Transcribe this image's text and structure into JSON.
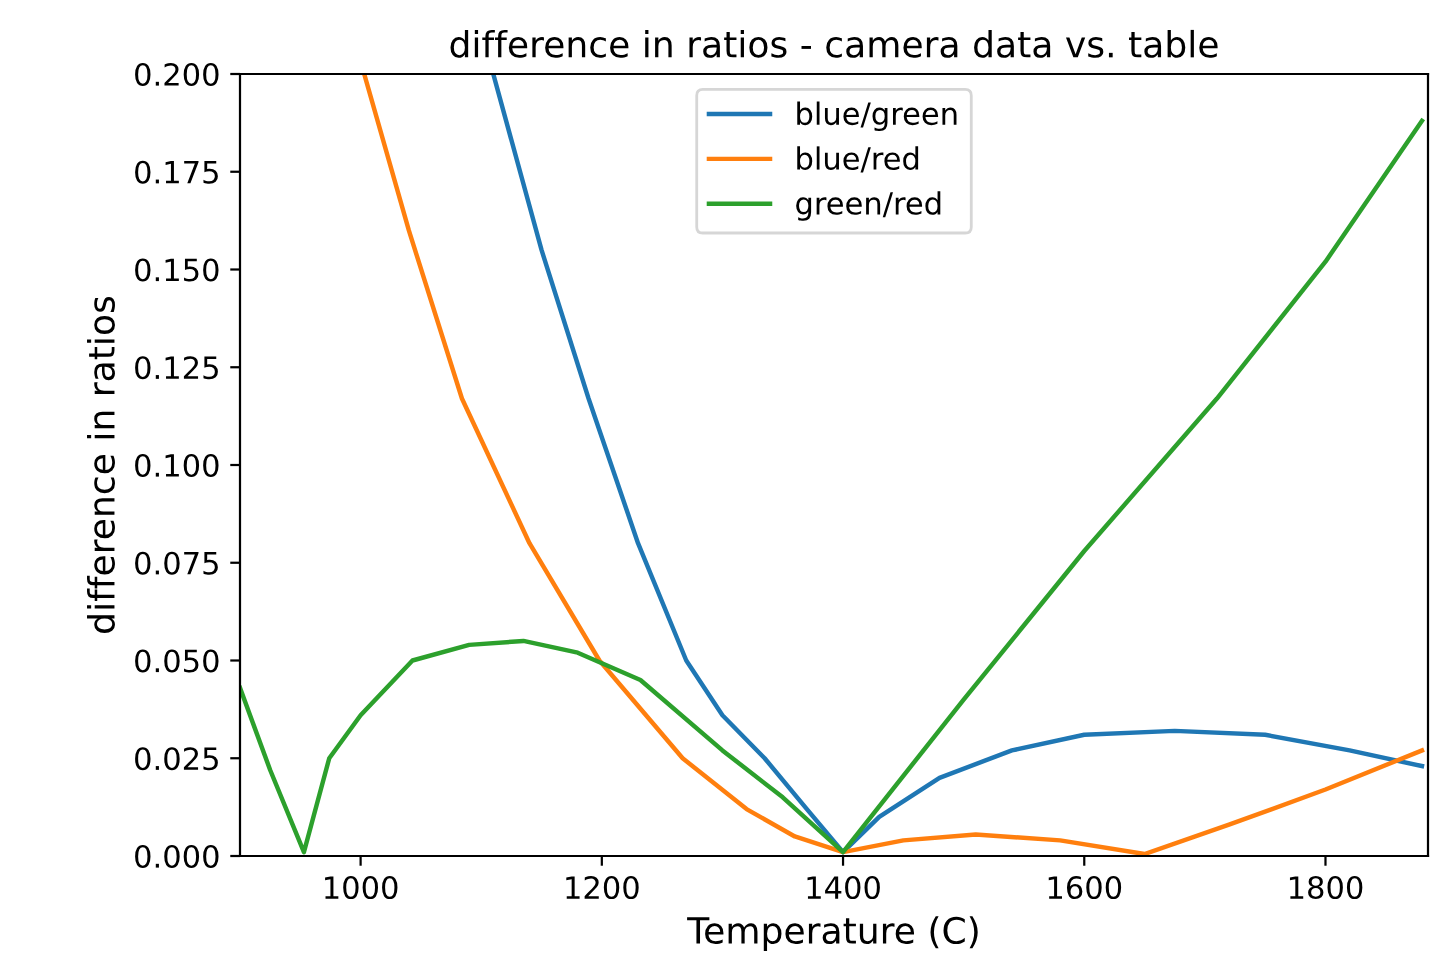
{
  "chart_data": {
    "type": "line",
    "title": "difference in ratios - camera data vs. table",
    "xlabel": "Temperature (C)",
    "ylabel": "difference in ratios",
    "xlim": [
      900,
      1885
    ],
    "ylim": [
      0,
      0.2
    ],
    "xticks": [
      1000,
      1200,
      1400,
      1600,
      1800
    ],
    "yticks": [
      {
        "value": 0,
        "label": "0.000"
      },
      {
        "value": 0.025,
        "label": "0.025"
      },
      {
        "value": 0.05,
        "label": "0.050"
      },
      {
        "value": 0.075,
        "label": "0.075"
      },
      {
        "value": 0.1,
        "label": "0.100"
      },
      {
        "value": 0.125,
        "label": "0.125"
      },
      {
        "value": 0.15,
        "label": "0.150"
      },
      {
        "value": 0.175,
        "label": "0.175"
      },
      {
        "value": 0.2,
        "label": "0.200"
      }
    ],
    "grid": false,
    "legend": "top center",
    "marker": "none",
    "line_style": "solid",
    "series": [
      {
        "name": "blue/green",
        "color": "#1f77b4",
        "x": [
          1110,
          1150,
          1189,
          1230,
          1270,
          1300,
          1335,
          1370,
          1400,
          1430,
          1480,
          1540,
          1600,
          1675,
          1750,
          1820,
          1880
        ],
        "values": [
          0.2,
          0.155,
          0.117,
          0.08,
          0.05,
          0.036,
          0.025,
          0.012,
          0.001,
          0.01,
          0.02,
          0.027,
          0.031,
          0.032,
          0.031,
          0.027,
          0.023
        ]
      },
      {
        "name": "blue/red",
        "color": "#ff7f0e",
        "x": [
          1003,
          1040,
          1084,
          1140,
          1198,
          1267,
          1320,
          1360,
          1400,
          1450,
          1510,
          1580,
          1650,
          1720,
          1800,
          1880
        ],
        "values": [
          0.2,
          0.16,
          0.117,
          0.08,
          0.05,
          0.025,
          0.012,
          0.005,
          0.001,
          0.004,
          0.0055,
          0.004,
          0.0005,
          0.008,
          0.017,
          0.027
        ]
      },
      {
        "name": "green/red",
        "color": "#2ca02c",
        "x": [
          900,
          925,
          953,
          974,
          1000,
          1043,
          1090,
          1135,
          1180,
          1232,
          1300,
          1350,
          1400,
          1500,
          1600,
          1710,
          1800,
          1880
        ],
        "values": [
          0.043,
          0.022,
          0.001,
          0.025,
          0.036,
          0.05,
          0.054,
          0.055,
          0.052,
          0.045,
          0.027,
          0.015,
          0.001,
          0.04,
          0.078,
          0.117,
          0.152,
          0.188
        ]
      }
    ]
  }
}
